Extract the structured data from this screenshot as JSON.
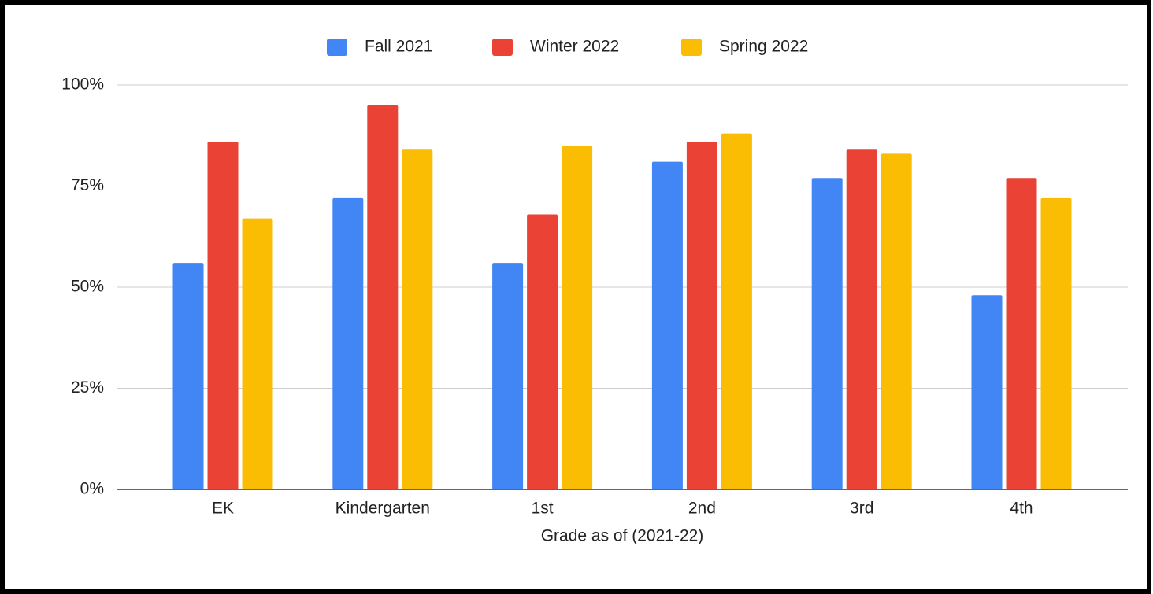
{
  "chart_data": {
    "type": "bar",
    "x_label": "Grade as of (2021-22)",
    "categories": [
      "EK",
      "Kindergarten",
      "1st",
      "2nd",
      "3rd",
      "4th"
    ],
    "series": [
      {
        "name": "Fall 2021",
        "color": "#4285f4",
        "values": [
          56,
          72,
          56,
          81,
          77,
          48
        ]
      },
      {
        "name": "Winter 2022",
        "color": "#ea4335",
        "values": [
          86,
          95,
          68,
          86,
          84,
          77
        ]
      },
      {
        "name": "Spring 2022",
        "color": "#fbbc04",
        "values": [
          67,
          84,
          85,
          88,
          83,
          72
        ]
      }
    ],
    "ylim": [
      0,
      100
    ],
    "yticks": [
      {
        "value": 0,
        "label": "0%"
      },
      {
        "value": 25,
        "label": "25%"
      },
      {
        "value": 50,
        "label": "50%"
      },
      {
        "value": 75,
        "label": "75%"
      },
      {
        "value": 100,
        "label": "100%"
      }
    ],
    "grid": true,
    "legend": "top"
  }
}
